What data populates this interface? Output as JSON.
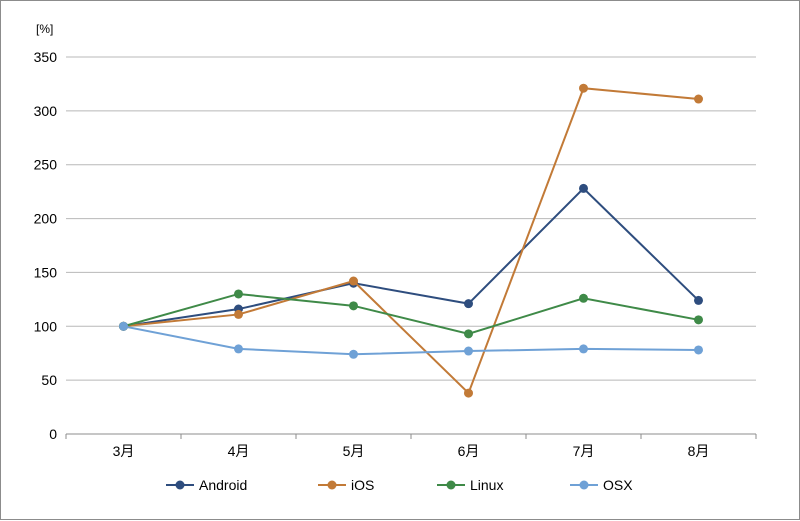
{
  "chart_data": {
    "type": "line",
    "title": "",
    "xlabel": "",
    "ylabel": "",
    "y_unit": "[%]",
    "categories": [
      "3月",
      "4月",
      "5月",
      "6月",
      "7月",
      "8月"
    ],
    "ylim": [
      0,
      350
    ],
    "yticks": [
      0,
      50,
      100,
      150,
      200,
      250,
      300,
      350
    ],
    "grid": true,
    "legend_position": "bottom",
    "series": [
      {
        "name": "Android",
        "color": "#2e4d7e",
        "values": [
          100,
          116,
          140,
          121,
          228,
          124
        ]
      },
      {
        "name": "iOS",
        "color": "#c27a37",
        "values": [
          100,
          111,
          142,
          38,
          321,
          311
        ]
      },
      {
        "name": "Linux",
        "color": "#3f8a48",
        "values": [
          100,
          130,
          119,
          93,
          126,
          106
        ]
      },
      {
        "name": "OSX",
        "color": "#6fa1d6",
        "values": [
          100,
          79,
          74,
          77,
          79,
          78
        ]
      }
    ]
  }
}
